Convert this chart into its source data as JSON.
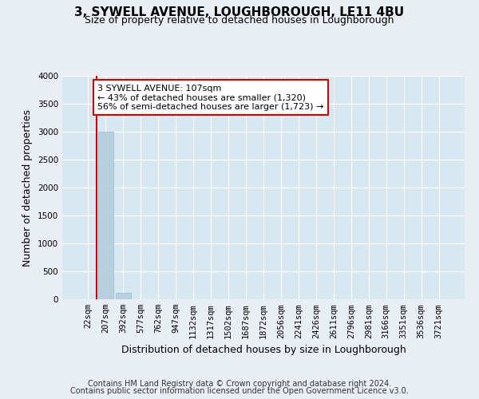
{
  "title": "3, SYWELL AVENUE, LOUGHBOROUGH, LE11 4BU",
  "subtitle": "Size of property relative to detached houses in Loughborough",
  "xlabel": "Distribution of detached houses by size in Loughborough",
  "ylabel": "Number of detached properties",
  "footer_line1": "Contains HM Land Registry data © Crown copyright and database right 2024.",
  "footer_line2": "Contains public sector information licensed under the Open Government Licence v3.0.",
  "categories": [
    "22sqm",
    "207sqm",
    "392sqm",
    "577sqm",
    "762sqm",
    "947sqm",
    "1132sqm",
    "1317sqm",
    "1502sqm",
    "1687sqm",
    "1872sqm",
    "2056sqm",
    "2241sqm",
    "2426sqm",
    "2611sqm",
    "2796sqm",
    "2981sqm",
    "3166sqm",
    "3351sqm",
    "3536sqm",
    "3721sqm"
  ],
  "values": [
    0,
    3000,
    110,
    0,
    0,
    0,
    0,
    0,
    0,
    0,
    0,
    0,
    0,
    0,
    0,
    0,
    0,
    0,
    0,
    0,
    0
  ],
  "bar_color": "#b8cfe0",
  "bar_edge_color": "#9ab8d0",
  "ylim": [
    0,
    4000
  ],
  "yticks": [
    0,
    500,
    1000,
    1500,
    2000,
    2500,
    3000,
    3500,
    4000
  ],
  "annotation_text": "3 SYWELL AVENUE: 107sqm\n← 43% of detached houses are smaller (1,320)\n56% of semi-detached houses are larger (1,723) →",
  "annotation_box_color": "#ffffff",
  "annotation_border_color": "#cc0000",
  "vline_color": "#cc0000",
  "bg_color": "#e8eef4",
  "plot_bg_color": "#d8e8f0",
  "grid_color": "#ffffff",
  "title_fontsize": 11,
  "subtitle_fontsize": 9,
  "tick_fontsize": 7.5,
  "ylabel_fontsize": 9,
  "xlabel_fontsize": 9,
  "footer_fontsize": 7
}
